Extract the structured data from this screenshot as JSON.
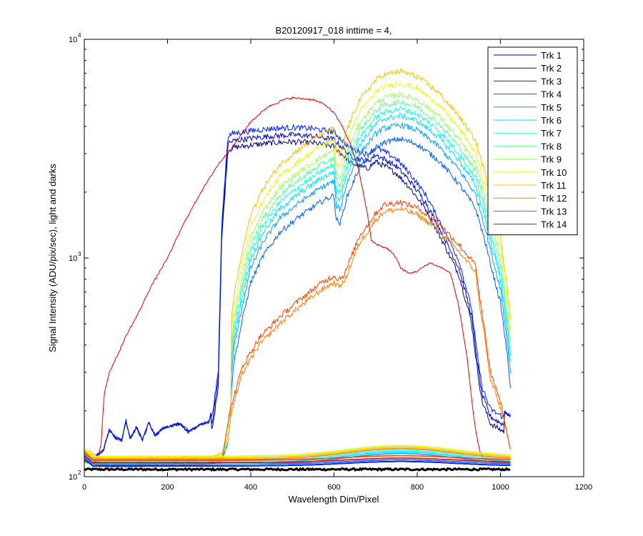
{
  "chart_data": {
    "type": "line",
    "title": "B20120917_018 inttime = 4,",
    "xlabel": "Wavelength Dim/Pixel",
    "ylabel": "Signal Intensity (ADU/pix/sec), light and darks",
    "xlim": [
      0,
      1200
    ],
    "ylim": [
      100,
      10000
    ],
    "yscale": "log",
    "x_ticks": [
      0,
      200,
      400,
      600,
      800,
      1000,
      1200
    ],
    "y_ticks": [
      {
        "value": 100,
        "base": "10",
        "exp": "2"
      },
      {
        "value": 1000,
        "base": "10",
        "exp": "3"
      },
      {
        "value": 10000,
        "base": "10",
        "exp": "4"
      }
    ],
    "grid": false,
    "legend_position": "top-right",
    "series": [
      {
        "name": "Trk 1",
        "color": "#00008f",
        "profile": "blue_sw",
        "scale": 0.8,
        "dark": 112
      },
      {
        "name": "Trk 2",
        "color": "#0000cc",
        "profile": "blue_sw",
        "scale": 0.86,
        "dark": 112
      },
      {
        "name": "Trk 3",
        "color": "#0020ff",
        "profile": "blue_sw",
        "scale": 0.93,
        "dark": 112
      },
      {
        "name": "Trk 4",
        "color": "#0060ff",
        "profile": "vis_main",
        "scale": 1.25,
        "dark": 114
      },
      {
        "name": "Trk 5",
        "color": "#00a0ff",
        "profile": "vis_main",
        "scale": 1.45,
        "dark": 114
      },
      {
        "name": "Trk 6",
        "color": "#00dfff",
        "profile": "vis_main",
        "scale": 1.6,
        "dark": 116
      },
      {
        "name": "Trk 7",
        "color": "#20ffdf",
        "profile": "vis_main",
        "scale": 1.72,
        "dark": 118
      },
      {
        "name": "Trk 8",
        "color": "#60ff9f",
        "profile": "vis_main",
        "scale": 1.85,
        "dark": 120
      },
      {
        "name": "Trk 9",
        "color": "#9fff60",
        "profile": "vis_main",
        "scale": 2.0,
        "dark": 124
      },
      {
        "name": "Trk 10",
        "color": "#dfff20",
        "profile": "vis_main",
        "scale": 2.25,
        "dark": 124
      },
      {
        "name": "Trk 11",
        "color": "#ffbf00",
        "profile": "vis_main",
        "scale": 2.55,
        "dark": 122
      },
      {
        "name": "Trk 12",
        "color": "#ff8000",
        "profile": "vis_low",
        "scale": 0.93,
        "dark": 120
      },
      {
        "name": "Trk 13",
        "color": "#ff4000",
        "profile": "vis_low",
        "scale": 1.0,
        "dark": 119
      },
      {
        "name": "Trk 14",
        "color": "#df0000",
        "profile": "red_uv",
        "scale": 1.0,
        "dark": 116
      }
    ],
    "profiles": {
      "blue_sw": [
        [
          28,
          125
        ],
        [
          45,
          132
        ],
        [
          60,
          165
        ],
        [
          75,
          152
        ],
        [
          90,
          148
        ],
        [
          100,
          182
        ],
        [
          110,
          150
        ],
        [
          125,
          170
        ],
        [
          140,
          148
        ],
        [
          155,
          178
        ],
        [
          170,
          155
        ],
        [
          190,
          168
        ],
        [
          210,
          172
        ],
        [
          230,
          176
        ],
        [
          250,
          162
        ],
        [
          270,
          170
        ],
        [
          290,
          178
        ],
        [
          300,
          180
        ],
        [
          310,
          220
        ],
        [
          322,
          330
        ],
        [
          330,
          1500
        ],
        [
          345,
          3900
        ],
        [
          360,
          4000
        ],
        [
          400,
          4100
        ],
        [
          450,
          4200
        ],
        [
          500,
          4250
        ],
        [
          550,
          4200
        ],
        [
          600,
          4050
        ],
        [
          640,
          3400
        ],
        [
          680,
          3200
        ],
        [
          700,
          3450
        ],
        [
          720,
          3300
        ],
        [
          750,
          3050
        ],
        [
          780,
          2650
        ],
        [
          820,
          2100
        ],
        [
          860,
          1500
        ],
        [
          900,
          1050
        ],
        [
          930,
          640
        ],
        [
          945,
          380
        ],
        [
          955,
          280
        ],
        [
          975,
          220
        ],
        [
          990,
          210
        ],
        [
          1010,
          200
        ],
        [
          1025,
          190
        ]
      ],
      "vis_main": [
        [
          0,
          125
        ],
        [
          20,
          118
        ],
        [
          40,
          112
        ],
        [
          100,
          112
        ],
        [
          200,
          113
        ],
        [
          300,
          114
        ],
        [
          330,
          118
        ],
        [
          345,
          140
        ],
        [
          360,
          270
        ],
        [
          380,
          420
        ],
        [
          400,
          620
        ],
        [
          430,
          820
        ],
        [
          470,
          1050
        ],
        [
          520,
          1250
        ],
        [
          570,
          1450
        ],
        [
          600,
          1550
        ],
        [
          605,
          1200
        ],
        [
          615,
          1150
        ],
        [
          630,
          1500
        ],
        [
          660,
          2050
        ],
        [
          700,
          2550
        ],
        [
          720,
          2700
        ],
        [
          760,
          2800
        ],
        [
          800,
          2650
        ],
        [
          850,
          2250
        ],
        [
          900,
          1750
        ],
        [
          940,
          1350
        ],
        [
          960,
          1000
        ],
        [
          980,
          700
        ],
        [
          1000,
          500
        ],
        [
          1015,
          300
        ],
        [
          1025,
          200
        ]
      ],
      "vis_low": [
        [
          0,
          118
        ],
        [
          40,
          112
        ],
        [
          100,
          112
        ],
        [
          200,
          113
        ],
        [
          300,
          114
        ],
        [
          330,
          118
        ],
        [
          350,
          200
        ],
        [
          380,
          320
        ],
        [
          420,
          430
        ],
        [
          470,
          540
        ],
        [
          520,
          650
        ],
        [
          570,
          770
        ],
        [
          600,
          830
        ],
        [
          610,
          800
        ],
        [
          625,
          840
        ],
        [
          660,
          1250
        ],
        [
          700,
          1600
        ],
        [
          720,
          1750
        ],
        [
          760,
          1800
        ],
        [
          800,
          1700
        ],
        [
          850,
          1450
        ],
        [
          900,
          1150
        ],
        [
          940,
          930
        ],
        [
          950,
          650
        ],
        [
          960,
          500
        ],
        [
          975,
          300
        ],
        [
          985,
          270
        ],
        [
          1000,
          220
        ],
        [
          1015,
          160
        ],
        [
          1025,
          130
        ]
      ],
      "red_uv": [
        [
          0,
          118
        ],
        [
          20,
          116
        ],
        [
          30,
          118
        ],
        [
          40,
          140
        ],
        [
          48,
          240
        ],
        [
          60,
          300
        ],
        [
          80,
          360
        ],
        [
          100,
          440
        ],
        [
          130,
          560
        ],
        [
          160,
          740
        ],
        [
          200,
          1000
        ],
        [
          240,
          1450
        ],
        [
          280,
          2000
        ],
        [
          320,
          2650
        ],
        [
          360,
          3300
        ],
        [
          400,
          4200
        ],
        [
          440,
          4900
        ],
        [
          480,
          5300
        ],
        [
          500,
          5400
        ],
        [
          550,
          5300
        ],
        [
          580,
          5000
        ],
        [
          600,
          4600
        ],
        [
          620,
          4000
        ],
        [
          640,
          3300
        ],
        [
          660,
          2500
        ],
        [
          680,
          1600
        ],
        [
          690,
          1200
        ],
        [
          695,
          1180
        ],
        [
          705,
          1150
        ],
        [
          730,
          1100
        ],
        [
          750,
          1000
        ],
        [
          760,
          900
        ],
        [
          780,
          850
        ],
        [
          800,
          870
        ],
        [
          830,
          950
        ],
        [
          860,
          900
        ],
        [
          880,
          850
        ],
        [
          900,
          600
        ],
        [
          920,
          350
        ],
        [
          935,
          190
        ],
        [
          945,
          145
        ],
        [
          952,
          128
        ],
        [
          958,
          122
        ],
        [
          965,
          120
        ],
        [
          980,
          118
        ],
        [
          1020,
          116
        ]
      ]
    },
    "dark_baseline": {
      "color": "#000000",
      "value": 108,
      "x_range": [
        0,
        1025
      ]
    }
  }
}
